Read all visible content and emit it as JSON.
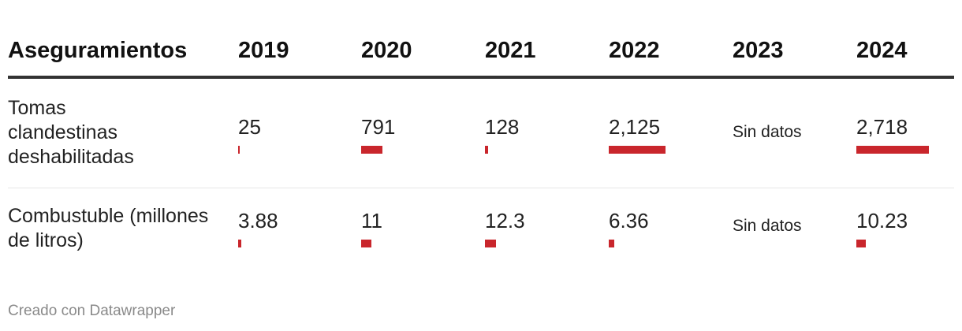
{
  "header": {
    "label": "Aseguramientos",
    "years": [
      "2019",
      "2020",
      "2021",
      "2022",
      "2023",
      "2024"
    ]
  },
  "rows": [
    {
      "label": "Tomas clandestinas deshabilitadas",
      "values": [
        "25",
        "791",
        "128",
        "2,125",
        "Sin datos",
        "2,718"
      ]
    },
    {
      "label": "Combustuble (millones de litros)",
      "values": [
        "3.88",
        "11",
        "12.3",
        "6.36",
        "Sin datos",
        "10.23"
      ]
    }
  ],
  "footer": "Creado con Datawrapper",
  "colors": {
    "bar": "#c9262c",
    "rule": "#333333"
  },
  "chart_data": {
    "type": "table",
    "columns": [
      "Aseguramientos",
      "2019",
      "2020",
      "2021",
      "2022",
      "2023",
      "2024"
    ],
    "series": [
      {
        "name": "Tomas clandestinas deshabilitadas",
        "values": [
          25,
          791,
          128,
          2125,
          null,
          2718
        ]
      },
      {
        "name": "Combustuble (millones de litros)",
        "values": [
          3.88,
          11,
          12.3,
          6.36,
          null,
          10.23
        ]
      }
    ],
    "missing_text": "Sin datos"
  }
}
